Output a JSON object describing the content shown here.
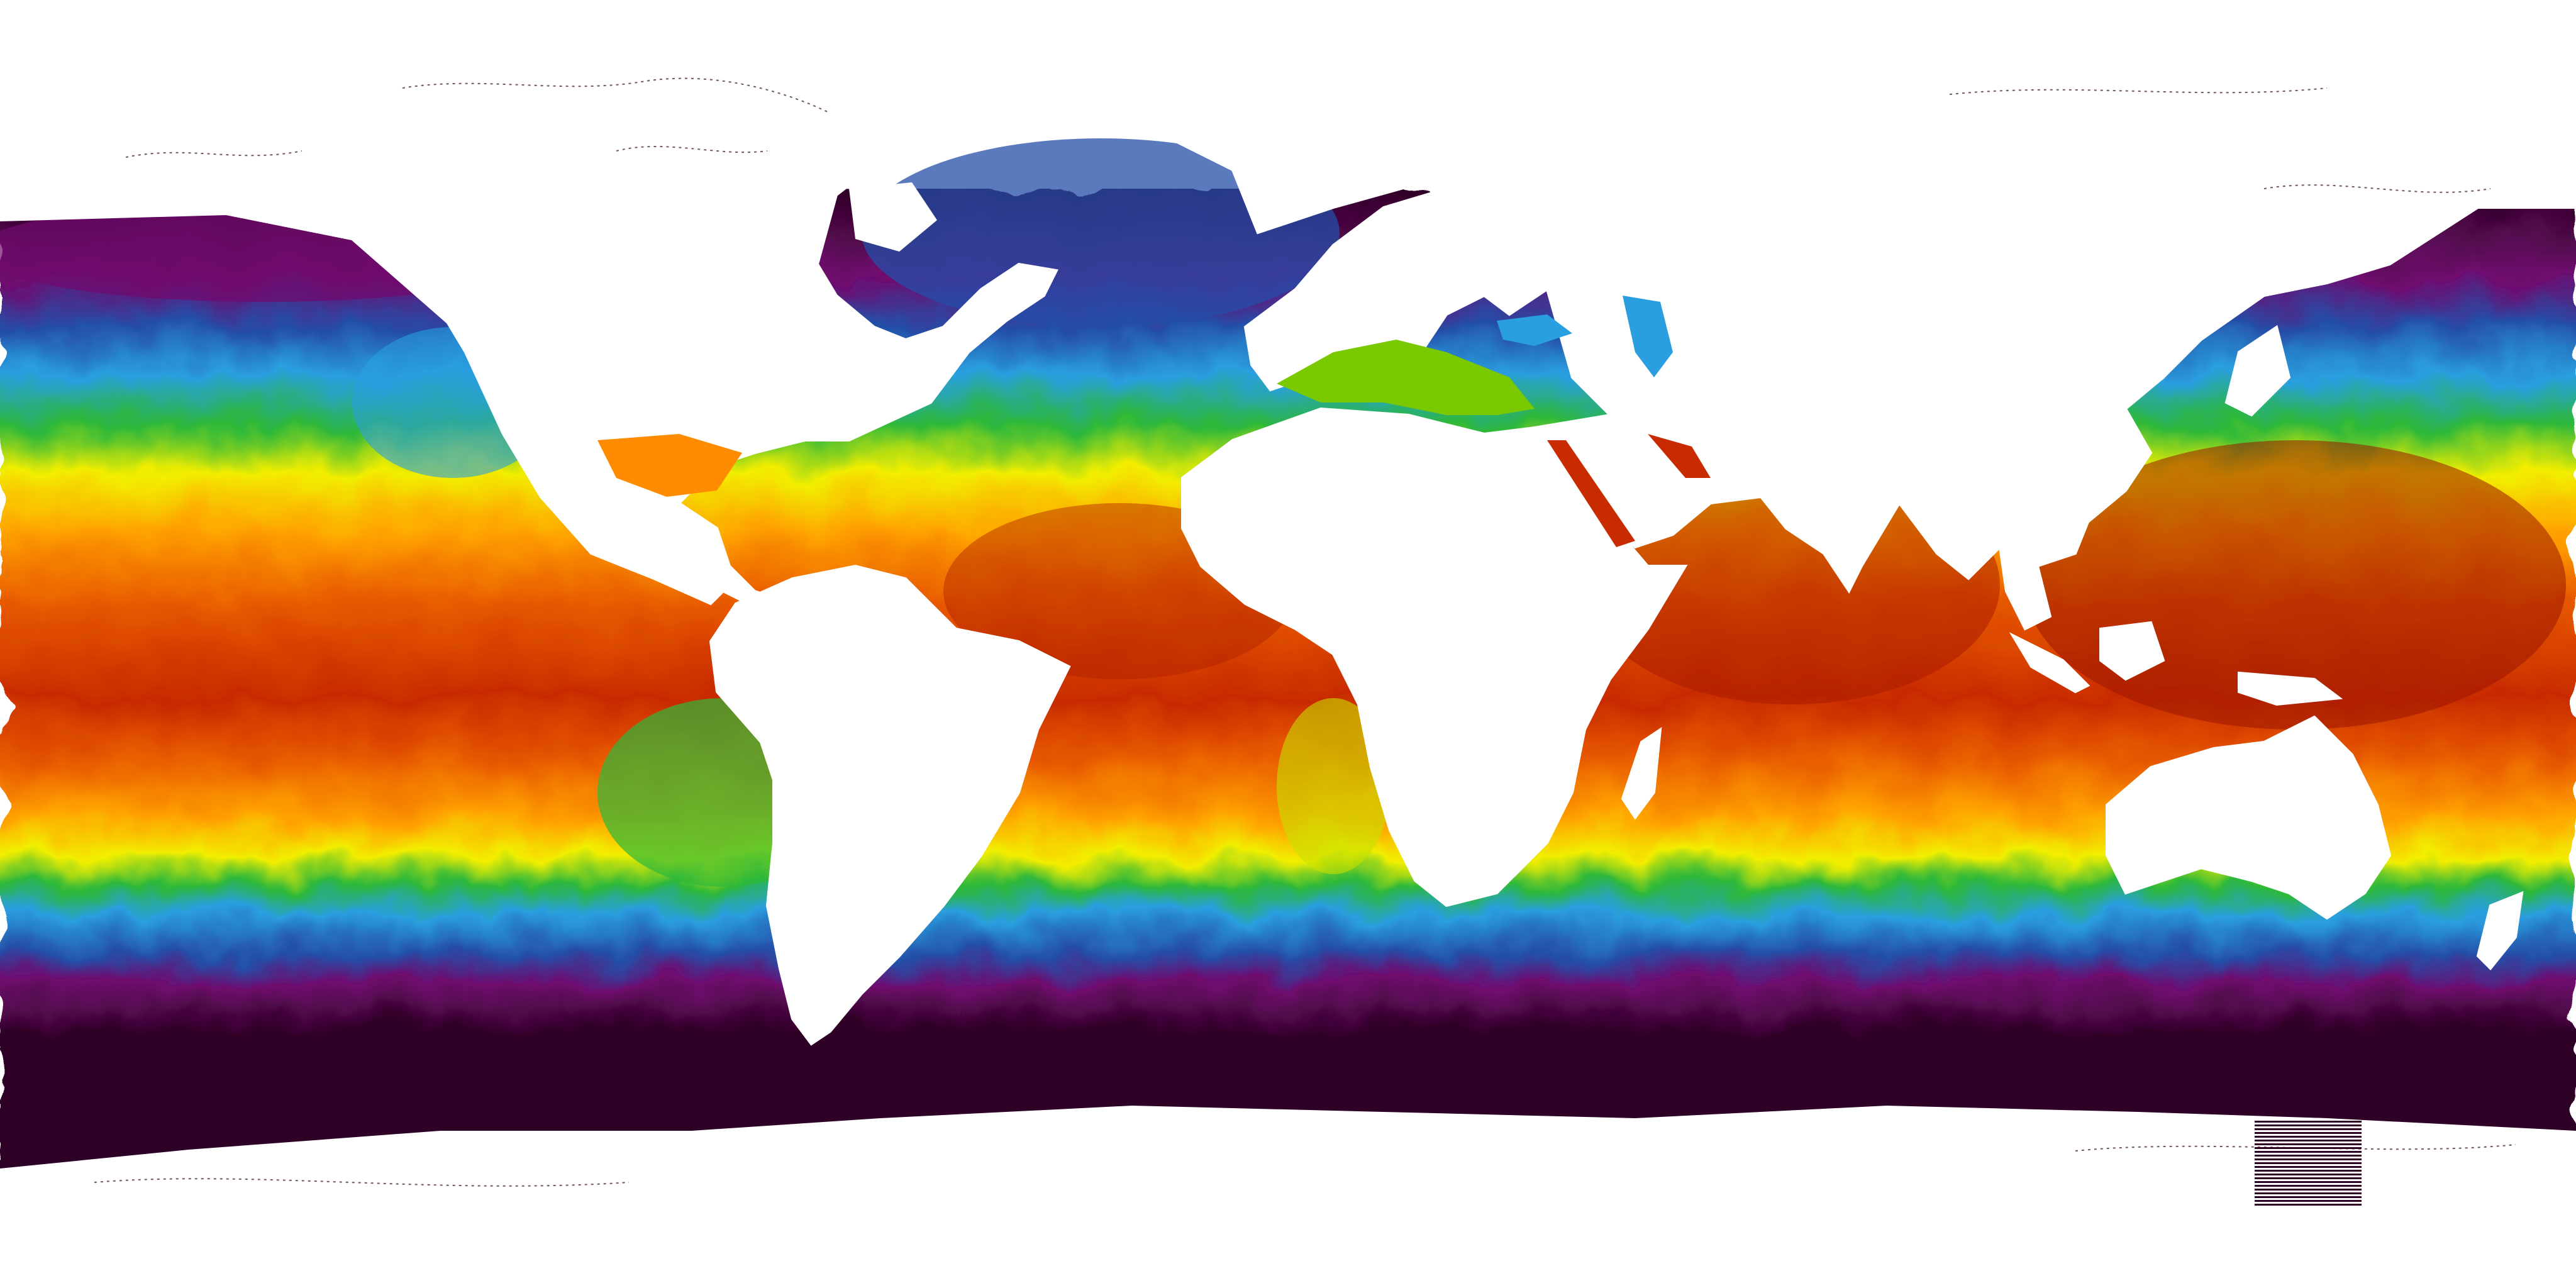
{
  "map": {
    "type": "sea-surface-temperature-global",
    "projection": "equirectangular",
    "extent": {
      "lon": [
        -180,
        180
      ],
      "lat": [
        -90,
        90
      ]
    },
    "land_color": "#ffffff",
    "coastline_color": "#3a0a2a",
    "palette": [
      "#2e0425",
      "#700a6e",
      "#244ea8",
      "#2a9fe0",
      "#2db83a",
      "#f2ee00",
      "#ffa200",
      "#e85a00",
      "#c82b00",
      "#8e1200"
    ],
    "visible_text": []
  },
  "scale_marker": {
    "icon": "striped-legend-icon",
    "color": "#2e0425"
  }
}
